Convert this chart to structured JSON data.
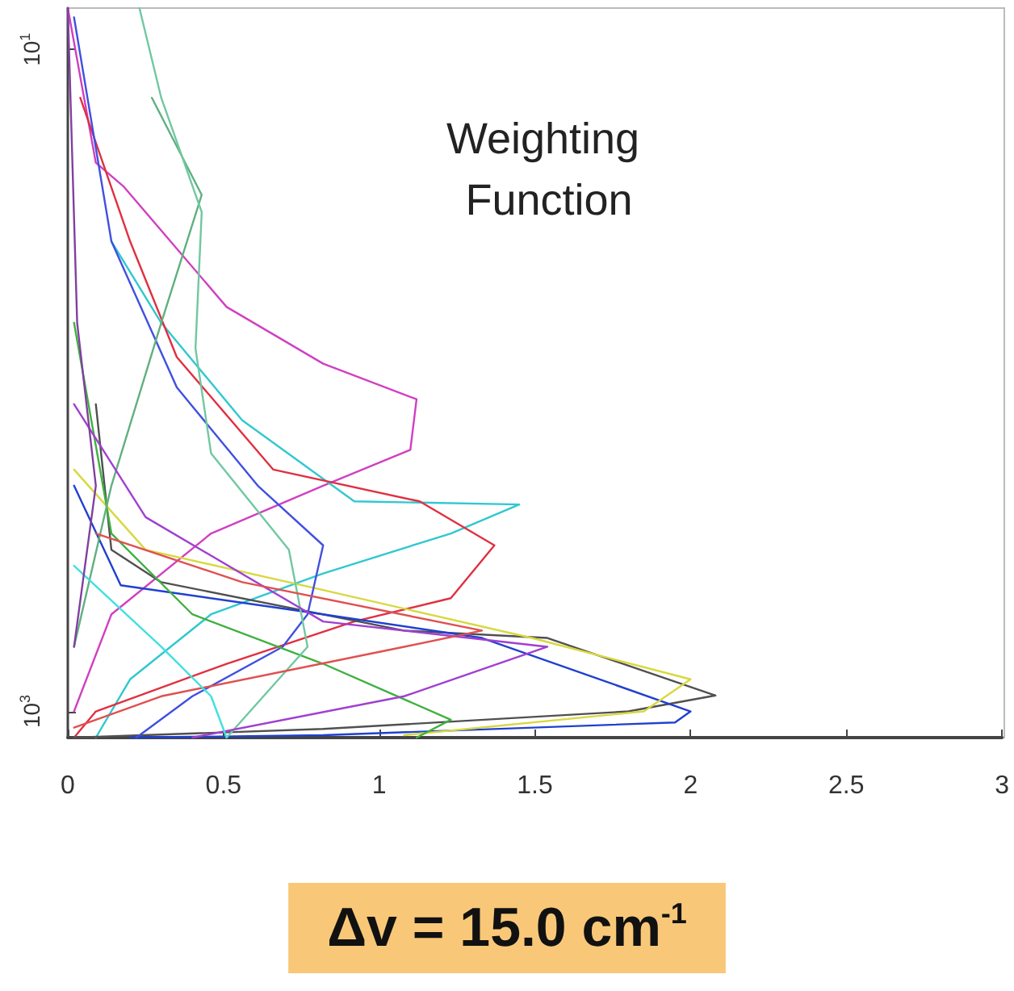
{
  "chart_data": {
    "type": "line",
    "title": "Weighting Function",
    "annotations": [
      "Δv = 15.0 cm$^{-1}$"
    ],
    "xlim": [
      0,
      3
    ],
    "xticks": [
      0,
      0.5,
      1,
      1.5,
      2,
      2.5,
      3
    ],
    "log": true,
    "ylim": [
      1200,
      7.5
    ],
    "yticks": [
      {
        "value": 10,
        "label": "10$^{1}$"
      },
      {
        "value": 1000,
        "label": "10$^{3}$"
      }
    ],
    "marker": "none",
    "line_style": "solid",
    "series": [
      {
        "color": "#d040c0",
        "x": [
          0,
          0.09,
          0.18,
          0.51,
          0.82,
          1.12,
          1.1,
          0.82,
          0.46,
          0.14,
          0.02
        ],
        "values": [
          7.5,
          22,
          26,
          60,
          89,
          114,
          162,
          208,
          290,
          509,
          1000
        ]
      },
      {
        "color": "#30c8d0",
        "x": [
          0.14,
          0.3,
          0.56,
          0.92,
          1.45,
          1.23,
          0.82,
          0.46,
          0.2,
          0.09
        ],
        "values": [
          38,
          67,
          132,
          232,
          237,
          290,
          383,
          509,
          800,
          1200
        ]
      },
      {
        "color": "#e03040",
        "x": [
          0.04,
          0.2,
          0.35,
          0.66,
          1.13,
          1.37,
          1.23,
          0.92,
          0.51,
          0.09,
          0.02
        ],
        "values": [
          14,
          38,
          85,
          186,
          232,
          315,
          455,
          535,
          718,
          1000,
          1200
        ]
      },
      {
        "color": "#505050",
        "x": [
          0.09,
          0.14,
          0.3,
          1.08,
          1.54,
          2.08,
          1.8,
          0.82,
          0.02
        ],
        "values": [
          118,
          325,
          407,
          570,
          600,
          895,
          1000,
          1130,
          1200
        ]
      },
      {
        "color": "#2040d0",
        "x": [
          0.02,
          0.17,
          0.82,
          1.33,
          2.0,
          1.95,
          0.82,
          0.2
        ],
        "values": [
          208,
          416,
          509,
          600,
          1000,
          1080,
          1180,
          1200
        ]
      },
      {
        "color": "#d8d840",
        "x": [
          0.02,
          0.25,
          0.82,
          1.49,
          2.0,
          1.85,
          1.08
        ],
        "values": [
          186,
          325,
          430,
          600,
          800,
          1000,
          1180
        ]
      },
      {
        "color": "#4050e0",
        "x": [
          0.02,
          0.14,
          0.35,
          0.61,
          0.82,
          0.77,
          0.69,
          0.4,
          0.22
        ],
        "values": [
          8,
          38,
          105,
          208,
          315,
          509,
          638,
          900,
          1200
        ]
      },
      {
        "color": "#40b040",
        "x": [
          0.02,
          0.14,
          0.4,
          0.82,
          1.23,
          1.12
        ],
        "values": [
          67,
          290,
          509,
          718,
          1060,
          1200
        ]
      },
      {
        "color": "#60b080",
        "x": [
          0.27,
          0.43,
          0.3,
          0.14,
          0.02
        ],
        "values": [
          14,
          27.5,
          67,
          208,
          638
        ]
      },
      {
        "color": "#70c8a0",
        "x": [
          0.23,
          0.3,
          0.43,
          0.41,
          0.46,
          0.71,
          0.77,
          0.51
        ],
        "values": [
          7.5,
          14,
          31,
          80,
          166,
          325,
          638,
          1200
        ]
      },
      {
        "color": "#a040d0",
        "x": [
          0.02,
          0.25,
          0.82,
          1.54,
          1.08,
          0.4
        ],
        "values": [
          118,
          259,
          535,
          638,
          900,
          1200
        ]
      },
      {
        "color": "#e05050",
        "x": [
          0.09,
          0.56,
          1.33,
          1.08,
          0.3,
          0.02
        ],
        "values": [
          290,
          407,
          570,
          638,
          900,
          1120
        ]
      },
      {
        "color": "#40e0e0",
        "x": [
          0.02,
          0.3,
          0.46,
          0.51
        ],
        "values": [
          363,
          638,
          900,
          1200
        ]
      },
      {
        "color": "#8040a0",
        "x": [
          0,
          0.03,
          0.09,
          0.02
        ],
        "values": [
          7.5,
          67,
          208,
          638
        ]
      }
    ]
  }
}
